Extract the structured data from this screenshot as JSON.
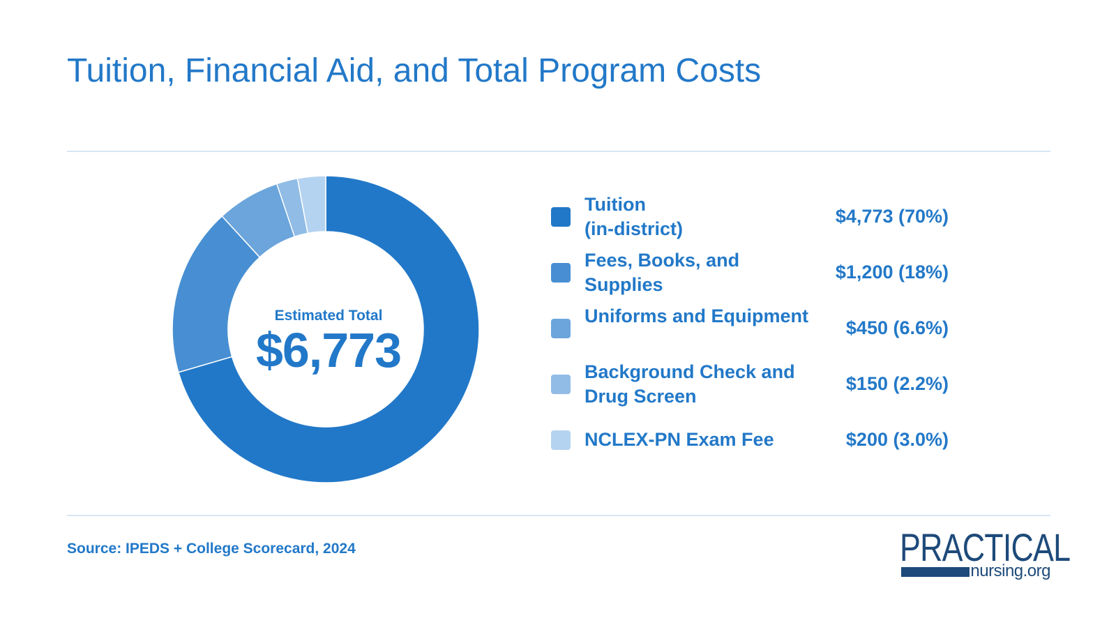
{
  "title": "Tuition, Financial Aid, and Total Program Costs",
  "source": "Source: IPEDS + College Scorecard, 2024",
  "logo": {
    "word": "PRACTICAL",
    "sub": "nursing.org"
  },
  "center": {
    "label": "Estimated Total",
    "value": "$6,773"
  },
  "legend": [
    {
      "name": "Tuition\n(in-district)",
      "amount": "$4,773 (70%)"
    },
    {
      "name": "Fees, Books, and Supplies",
      "amount": "$1,200 (18%)"
    },
    {
      "name": "Uniforms and Equipment",
      "amount": "$450 (6.6%)"
    },
    {
      "name": "Background Check and Drug Screen",
      "amount": "$150 (2.2%)"
    },
    {
      "name": "NCLEX-PN Exam Fee",
      "amount": "$200 (3.0%)"
    }
  ],
  "chart_data": {
    "type": "pie",
    "categories": [
      "Tuition (in-district)",
      "Fees, Books, and Supplies",
      "Uniforms and Equipment",
      "Background Check and Drug Screen",
      "NCLEX-PN Exam Fee"
    ],
    "values": [
      4773,
      1200,
      450,
      150,
      200
    ],
    "percent_labels": [
      "70%",
      "18%",
      "6.6%",
      "2.2%",
      "3.0%"
    ],
    "total": 6773,
    "colors": [
      "#2278c8",
      "#478fd2",
      "#6ba5dc",
      "#90bce6",
      "#b4d3f0"
    ],
    "title": "Tuition, Financial Aid, and Total Program Costs",
    "legend": "right"
  }
}
